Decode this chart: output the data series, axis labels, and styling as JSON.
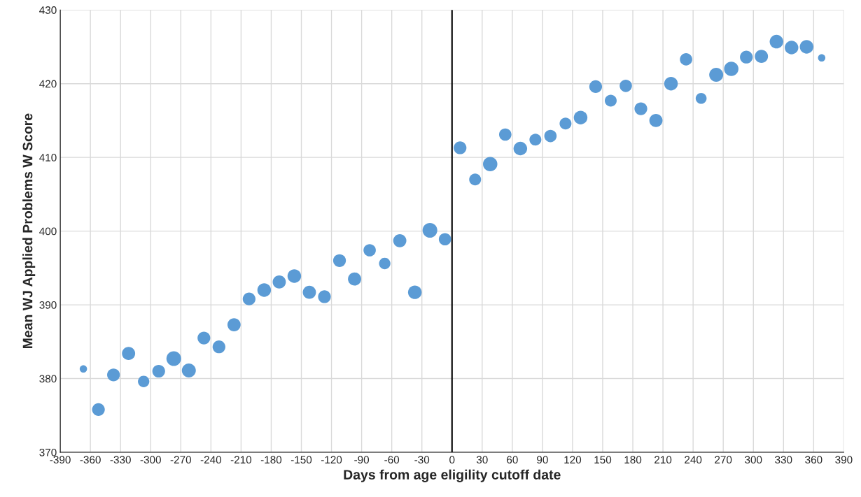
{
  "chart_data": {
    "type": "bubble",
    "xlabel": "Days from age eligility cutoff date",
    "ylabel": "Mean WJ Applied Problems W Score",
    "x": [
      -367,
      -352,
      -337,
      -322,
      -307,
      -292,
      -277,
      -262,
      -247,
      -232,
      -217,
      -202,
      -187,
      -172,
      -157,
      -142,
      -127,
      -112,
      -97,
      -82,
      -67,
      -52,
      -37,
      -22,
      -7,
      8,
      23,
      38,
      53,
      68,
      83,
      98,
      113,
      128,
      143,
      158,
      173,
      188,
      203,
      218,
      233,
      248,
      263,
      278,
      293,
      308,
      323,
      338,
      353,
      368
    ],
    "values": [
      381.3,
      375.8,
      380.5,
      383.4,
      379.6,
      381.0,
      382.7,
      381.1,
      385.5,
      384.3,
      387.3,
      390.8,
      392.0,
      393.1,
      393.9,
      391.7,
      391.1,
      396.0,
      393.5,
      397.4,
      395.6,
      398.7,
      391.7,
      400.1,
      398.9,
      411.3,
      407.0,
      409.1,
      413.1,
      411.2,
      412.4,
      412.9,
      414.6,
      415.4,
      419.6,
      417.7,
      419.7,
      416.6,
      415.0,
      420.0,
      423.3,
      418.0,
      421.2,
      422.0,
      423.6,
      423.7,
      425.7,
      424.9,
      425.0,
      423.5
    ],
    "sizes": [
      0.25,
      0.75,
      0.75,
      0.8,
      0.6,
      0.75,
      1.0,
      0.9,
      0.75,
      0.75,
      0.8,
      0.75,
      0.85,
      0.8,
      0.85,
      0.8,
      0.75,
      0.75,
      0.8,
      0.7,
      0.6,
      0.8,
      0.85,
      1.0,
      0.7,
      0.75,
      0.65,
      0.95,
      0.7,
      0.85,
      0.65,
      0.7,
      0.65,
      0.85,
      0.75,
      0.65,
      0.7,
      0.75,
      0.8,
      0.85,
      0.7,
      0.55,
      0.9,
      0.95,
      0.75,
      0.8,
      0.85,
      0.85,
      0.85,
      0.25
    ],
    "color": "#5b9bd5",
    "xlim": [
      -390,
      390
    ],
    "xticks": [
      -390,
      -360,
      -330,
      -300,
      -270,
      -240,
      -210,
      -180,
      -150,
      -120,
      -90,
      -60,
      -30,
      0,
      30,
      60,
      90,
      120,
      150,
      180,
      210,
      240,
      270,
      300,
      330,
      360,
      390
    ],
    "ylim": [
      370,
      430
    ],
    "yticks": [
      370,
      380,
      390,
      400,
      410,
      420,
      430
    ],
    "grid": true,
    "ref_lines": [
      {
        "axis": "x",
        "value": 0,
        "color": "#000000",
        "line_style": "solid"
      }
    ]
  }
}
